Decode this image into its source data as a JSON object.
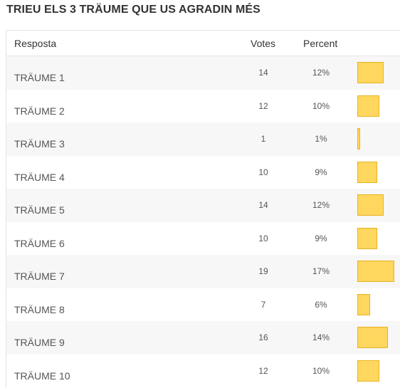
{
  "poll": {
    "title": "TRIEU ELS 3 TRÄUME QUE US AGRADIN MÉS",
    "columns": {
      "answer": "Resposta",
      "votes": "Votes",
      "percent": "Percent"
    },
    "bar_color": "#ffd65e",
    "bar_border_color": "#e6b422",
    "max_percent": 17,
    "rows": [
      {
        "answer": "TRÄUME 1",
        "votes": "14",
        "percent": "12%",
        "value": 12
      },
      {
        "answer": "TRÄUME 2",
        "votes": "12",
        "percent": "10%",
        "value": 10
      },
      {
        "answer": "TRÄUME 3",
        "votes": "1",
        "percent": "1%",
        "value": 1
      },
      {
        "answer": "TRÄUME 4",
        "votes": "10",
        "percent": "9%",
        "value": 9
      },
      {
        "answer": "TRÄUME 5",
        "votes": "14",
        "percent": "12%",
        "value": 12
      },
      {
        "answer": "TRÄUME 6",
        "votes": "10",
        "percent": "9%",
        "value": 9
      },
      {
        "answer": "TRÄUME 7",
        "votes": "19",
        "percent": "17%",
        "value": 17
      },
      {
        "answer": "TRÄUME 8",
        "votes": "7",
        "percent": "6%",
        "value": 6
      },
      {
        "answer": "TRÄUME 9",
        "votes": "16",
        "percent": "14%",
        "value": 14
      },
      {
        "answer": "TRÄUME 10",
        "votes": "12",
        "percent": "10%",
        "value": 10
      }
    ]
  }
}
